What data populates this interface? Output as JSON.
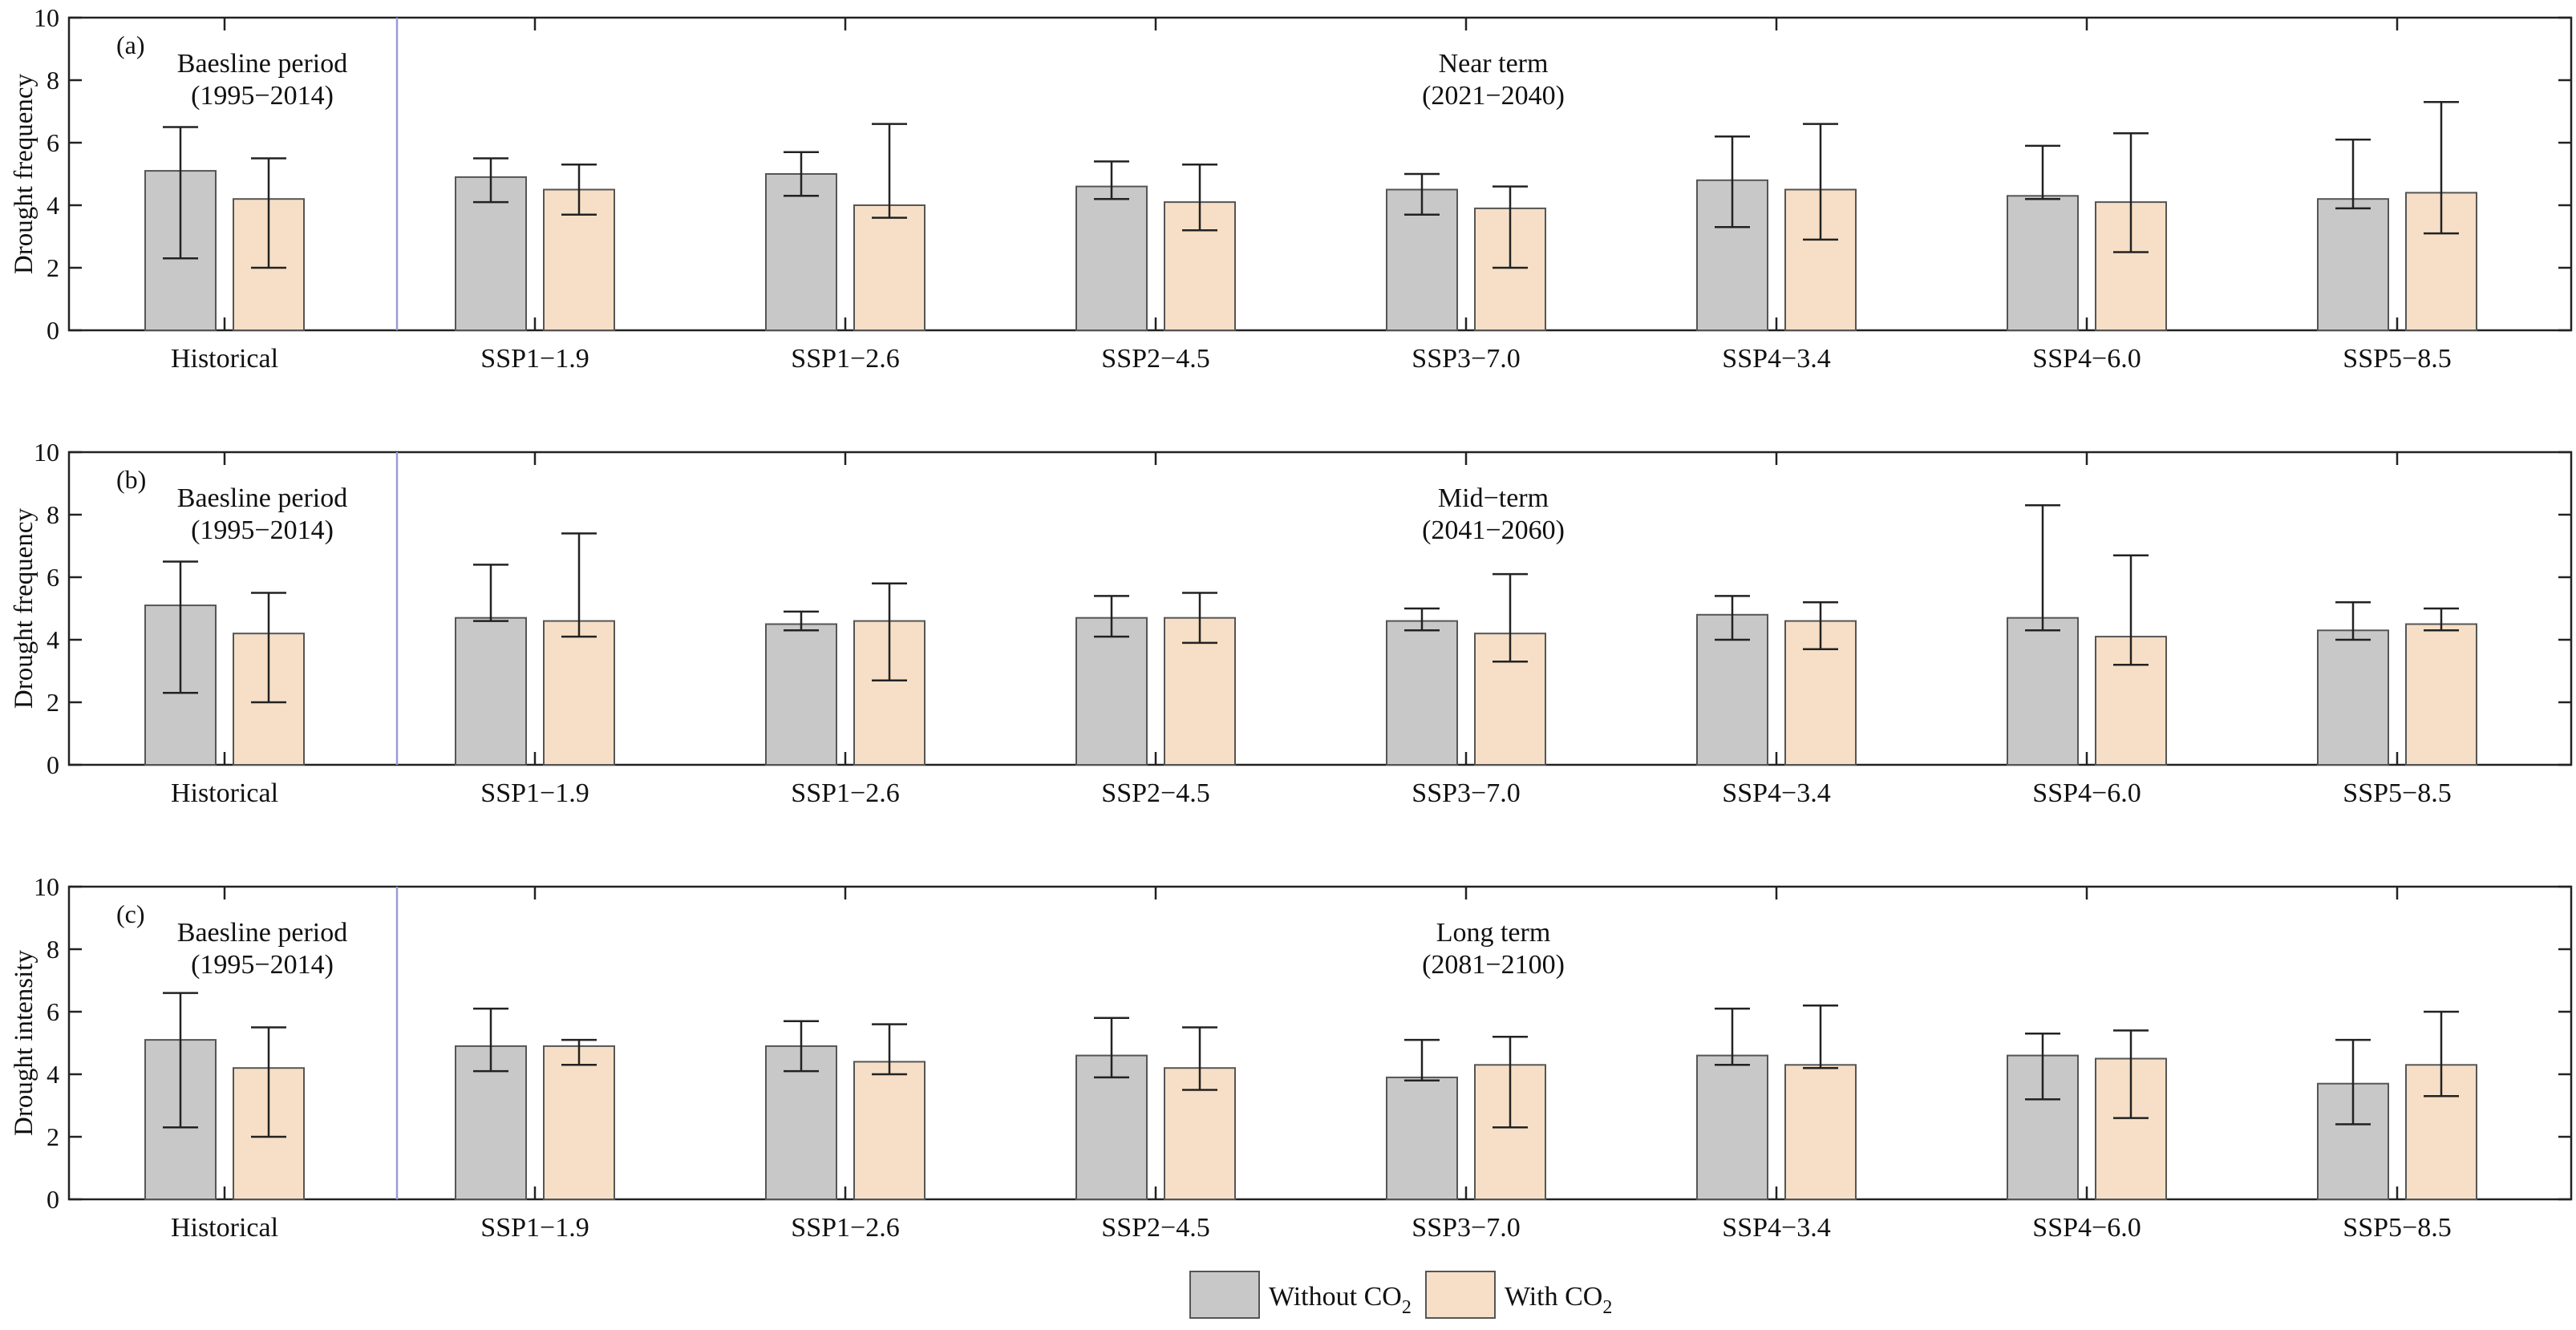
{
  "chart_data": [
    {
      "type": "bar",
      "panel_label": "(a)",
      "ylabel": "Drought frequency",
      "ylim": [
        0,
        10
      ],
      "yticks": [
        0,
        2,
        4,
        6,
        8,
        10
      ],
      "categories": [
        "Historical",
        "SSP1−1.9",
        "SSP1−2.6",
        "SSP2−4.5",
        "SSP3−7.0",
        "SSP4−3.4",
        "SSP4−6.0",
        "SSP5−8.5"
      ],
      "left_annotation": [
        "Baesline period",
        "(1995−2014)"
      ],
      "right_annotation": [
        "Near term",
        "(2021−2040)"
      ],
      "series": [
        {
          "name": "Without CO2",
          "values": [
            5.1,
            4.9,
            5.0,
            4.6,
            4.5,
            4.8,
            4.3,
            4.2
          ],
          "err_low": [
            2.3,
            4.1,
            4.3,
            4.2,
            3.7,
            3.3,
            4.2,
            3.9
          ],
          "err_high": [
            6.5,
            5.5,
            5.7,
            5.4,
            5.0,
            6.2,
            5.9,
            6.1
          ]
        },
        {
          "name": "With CO2",
          "values": [
            4.2,
            4.5,
            4.0,
            4.1,
            3.9,
            4.5,
            4.1,
            4.4
          ],
          "err_low": [
            2.0,
            3.7,
            3.6,
            3.2,
            2.0,
            2.9,
            2.5,
            3.1
          ],
          "err_high": [
            5.5,
            5.3,
            6.6,
            5.3,
            4.6,
            6.6,
            6.3,
            7.3
          ]
        }
      ]
    },
    {
      "type": "bar",
      "panel_label": "(b)",
      "ylabel": "Drought frequency",
      "ylim": [
        0,
        10
      ],
      "yticks": [
        0,
        2,
        4,
        6,
        8,
        10
      ],
      "categories": [
        "Historical",
        "SSP1−1.9",
        "SSP1−2.6",
        "SSP2−4.5",
        "SSP3−7.0",
        "SSP4−3.4",
        "SSP4−6.0",
        "SSP5−8.5"
      ],
      "left_annotation": [
        "Baesline period",
        "(1995−2014)"
      ],
      "right_annotation": [
        "Mid−term",
        "(2041−2060)"
      ],
      "series": [
        {
          "name": "Without CO2",
          "values": [
            5.1,
            4.7,
            4.5,
            4.7,
            4.6,
            4.8,
            4.7,
            4.3
          ],
          "err_low": [
            2.3,
            4.6,
            4.3,
            4.1,
            4.3,
            4.0,
            4.3,
            4.0
          ],
          "err_high": [
            6.5,
            6.4,
            4.9,
            5.4,
            5.0,
            5.4,
            8.3,
            5.2
          ]
        },
        {
          "name": "With CO2",
          "values": [
            4.2,
            4.6,
            4.6,
            4.7,
            4.2,
            4.6,
            4.1,
            4.5
          ],
          "err_low": [
            2.0,
            4.1,
            2.7,
            3.9,
            3.3,
            3.7,
            3.2,
            4.3
          ],
          "err_high": [
            5.5,
            7.4,
            5.8,
            5.5,
            6.1,
            5.2,
            6.7,
            5.0
          ]
        }
      ]
    },
    {
      "type": "bar",
      "panel_label": "(c)",
      "ylabel": "Drought intensity",
      "ylim": [
        0,
        10
      ],
      "yticks": [
        0,
        2,
        4,
        6,
        8,
        10
      ],
      "categories": [
        "Historical",
        "SSP1−1.9",
        "SSP1−2.6",
        "SSP2−4.5",
        "SSP3−7.0",
        "SSP4−3.4",
        "SSP4−6.0",
        "SSP5−8.5"
      ],
      "left_annotation": [
        "Baesline period",
        "(1995−2014)"
      ],
      "right_annotation": [
        "Long term",
        "(2081−2100)"
      ],
      "series": [
        {
          "name": "Without CO2",
          "values": [
            5.1,
            4.9,
            4.9,
            4.6,
            3.9,
            4.6,
            4.6,
            3.7
          ],
          "err_low": [
            2.3,
            4.1,
            4.1,
            3.9,
            3.8,
            4.3,
            3.2,
            2.4
          ],
          "err_high": [
            6.6,
            6.1,
            5.7,
            5.8,
            5.1,
            6.1,
            5.3,
            5.1
          ]
        },
        {
          "name": "With CO2",
          "values": [
            4.2,
            4.9,
            4.4,
            4.2,
            4.3,
            4.3,
            4.5,
            4.3
          ],
          "err_low": [
            2.0,
            4.3,
            4.0,
            3.5,
            2.3,
            4.2,
            2.6,
            3.3
          ],
          "err_high": [
            5.5,
            5.1,
            5.6,
            5.5,
            5.2,
            6.2,
            5.4,
            6.0
          ]
        }
      ]
    }
  ],
  "legend": {
    "items": [
      {
        "label": "Without CO",
        "subscript": "2",
        "color": "#c8c8c8"
      },
      {
        "label": "With CO",
        "subscript": "2",
        "color": "#f6dfc6"
      }
    ]
  },
  "colors": {
    "without": "#c8c8c8",
    "with": "#f6dfc6",
    "divider": "#9a9ad8",
    "axis": "#222222"
  }
}
